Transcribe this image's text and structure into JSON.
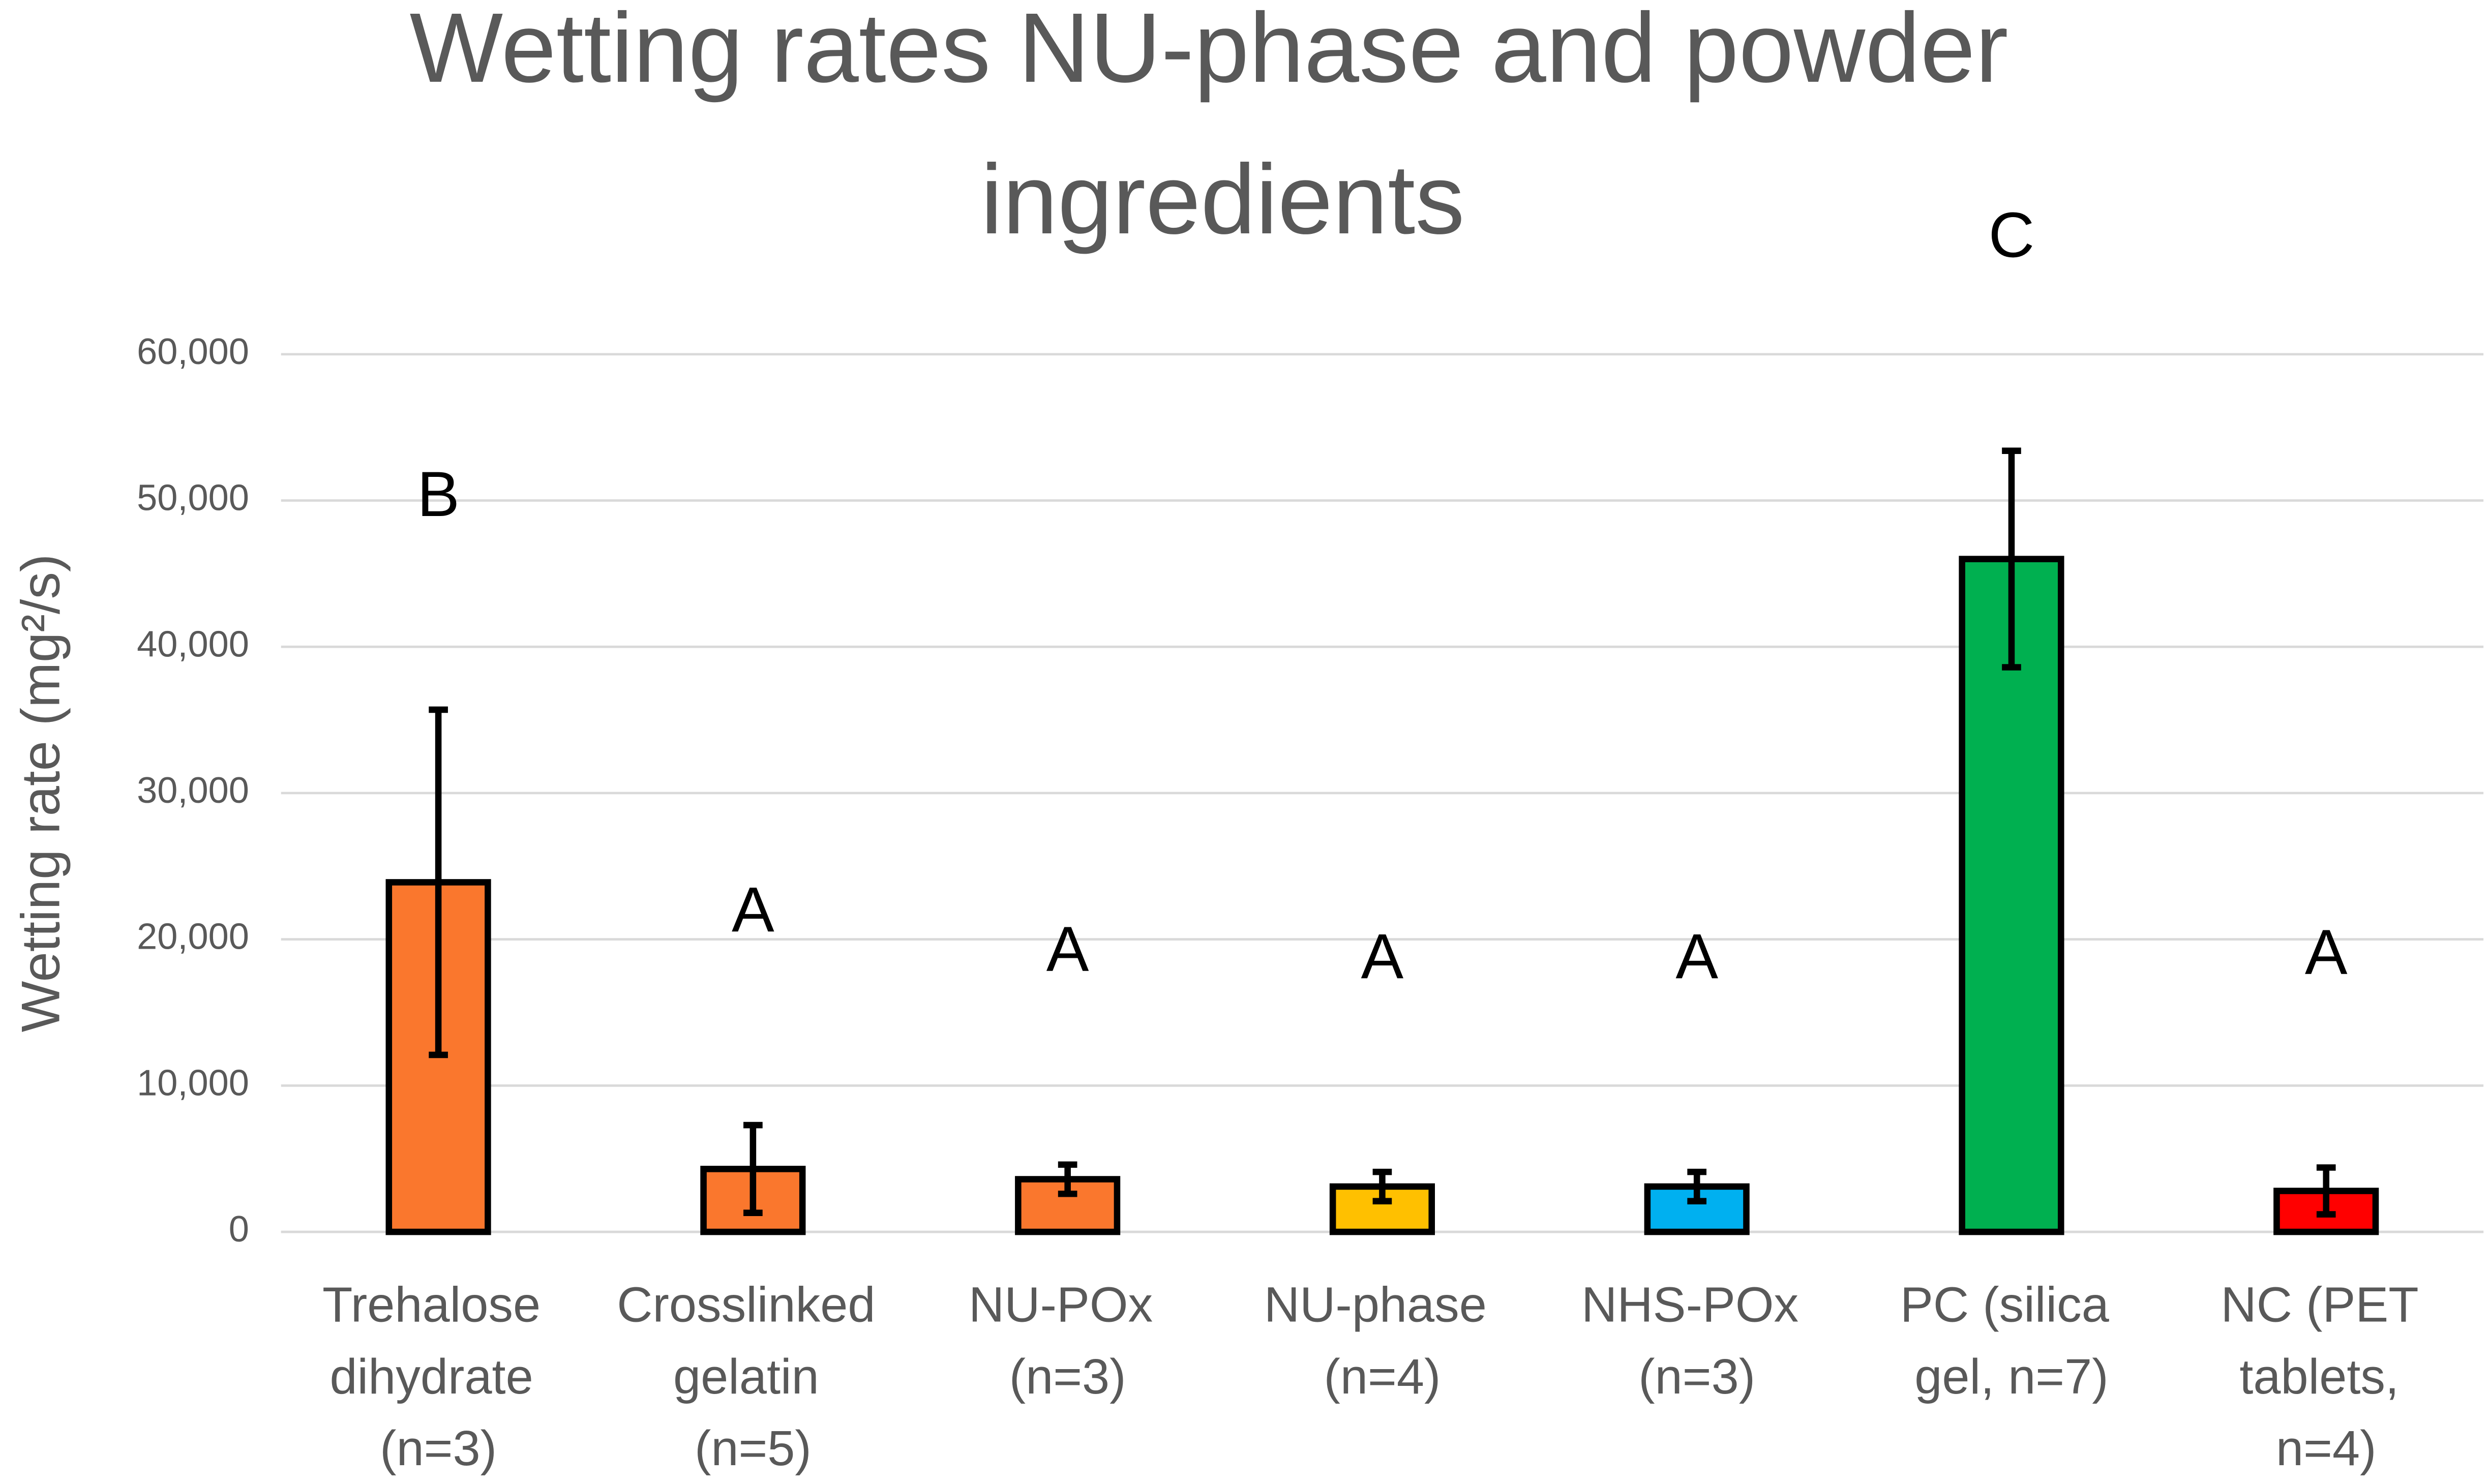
{
  "chart_data": {
    "type": "bar",
    "title": "Wetting rates NU-phase and powder ingredients",
    "y_label": "Wetting rate (mg²/s)",
    "categories": [
      "Trehalose dihydrate (n=3)",
      "Crosslinked gelatin (n=5)",
      "NU-POx (n=3)",
      "NU-phase (n=4)",
      "NHS-POx (n=3)",
      "PC (silica gel, n=7)",
      "NC (PET tablets, n=4)"
    ],
    "values": [
      23900,
      4300,
      3600,
      3100,
      3100,
      46000,
      2800
    ],
    "errors": [
      11800,
      3000,
      1000,
      1000,
      1000,
      7400,
      1600
    ],
    "colors": [
      "#fa772d",
      "#fa772d",
      "#fa772d",
      "#ffc000",
      "#00b0f0",
      "#00b050",
      "#ff0000"
    ],
    "annotations": [
      "B",
      "A",
      "A",
      "A",
      "A",
      "C",
      "A"
    ],
    "ylim": [
      0,
      60000
    ],
    "yticks": [
      0,
      {
        "value": 10000,
        "label": "10,000"
      },
      {
        "value": 20000,
        "label": "20,000"
      },
      {
        "value": 30000,
        "label": "30,000"
      },
      {
        "value": 40000,
        "label": "40,000"
      },
      {
        "value": 50000,
        "label": "50,000"
      },
      {
        "value": 60000,
        "label": "60,000"
      }
    ],
    "grid": true
  }
}
